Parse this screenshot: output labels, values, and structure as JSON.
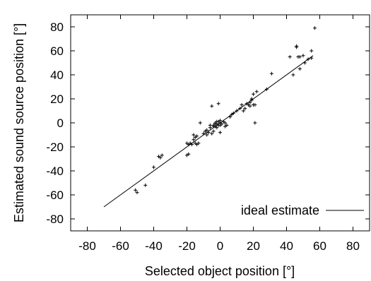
{
  "chart_data": {
    "type": "scatter",
    "xlabel": "Selected object position [°]",
    "ylabel": "Estimated sound source position [°]",
    "xlim": [
      -90,
      90
    ],
    "ylim": [
      -90,
      90
    ],
    "xticks": [
      -80,
      -60,
      -40,
      -20,
      0,
      20,
      40,
      60,
      80
    ],
    "yticks": [
      -80,
      -60,
      -40,
      -20,
      0,
      20,
      40,
      60,
      80
    ],
    "grid": false,
    "legend_position": "bottom-right",
    "marker": "+",
    "series": [
      {
        "name": "",
        "kind": "points",
        "points": [
          [
            -51,
            -56
          ],
          [
            -50,
            -58
          ],
          [
            -45,
            -52
          ],
          [
            -40,
            -37
          ],
          [
            -37,
            -28
          ],
          [
            -36,
            -29
          ],
          [
            -35,
            -27
          ],
          [
            -20,
            -17
          ],
          [
            -20,
            -27
          ],
          [
            -19,
            -26
          ],
          [
            -19,
            -18
          ],
          [
            -18,
            -17
          ],
          [
            -17,
            -18
          ],
          [
            -16,
            -10
          ],
          [
            -16,
            -14
          ],
          [
            -15,
            -12
          ],
          [
            -15,
            -17
          ],
          [
            -14,
            -18
          ],
          [
            -14,
            -11
          ],
          [
            -13,
            -17
          ],
          [
            -12,
            0
          ],
          [
            -10,
            -9
          ],
          [
            -9,
            -7
          ],
          [
            -8,
            -6
          ],
          [
            -8,
            -10
          ],
          [
            -7,
            -8
          ],
          [
            -6,
            -4
          ],
          [
            -6,
            -2
          ],
          [
            -5,
            14
          ],
          [
            -5,
            -9
          ],
          [
            -4,
            -7
          ],
          [
            -4,
            -3
          ],
          [
            -4,
            -2
          ],
          [
            -3,
            0
          ],
          [
            -3,
            -1
          ],
          [
            -3,
            -3
          ],
          [
            -2,
            -1
          ],
          [
            -2,
            1
          ],
          [
            -2,
            -4
          ],
          [
            -1,
            1
          ],
          [
            -1,
            16
          ],
          [
            -1,
            -2
          ],
          [
            0,
            2
          ],
          [
            0,
            0
          ],
          [
            0,
            -2
          ],
          [
            0,
            -8
          ],
          [
            1,
            -1
          ],
          [
            2,
            1
          ],
          [
            3,
            0
          ],
          [
            3,
            -3
          ],
          [
            4,
            -2
          ],
          [
            6,
            5
          ],
          [
            7,
            7
          ],
          [
            8,
            8
          ],
          [
            10,
            10
          ],
          [
            12,
            12
          ],
          [
            13,
            15
          ],
          [
            14,
            10
          ],
          [
            15,
            12
          ],
          [
            16,
            16
          ],
          [
            17,
            15
          ],
          [
            18,
            14
          ],
          [
            18,
            17
          ],
          [
            19,
            19
          ],
          [
            19,
            20
          ],
          [
            20,
            15
          ],
          [
            20,
            24
          ],
          [
            21,
            15
          ],
          [
            21,
            0
          ],
          [
            22,
            26
          ],
          [
            28,
            28
          ],
          [
            31,
            41
          ],
          [
            42,
            55
          ],
          [
            44,
            40
          ],
          [
            46,
            64
          ],
          [
            46,
            63
          ],
          [
            47,
            55
          ],
          [
            48,
            55
          ],
          [
            48,
            45
          ],
          [
            50,
            56
          ],
          [
            51,
            50
          ],
          [
            53,
            53
          ],
          [
            55,
            60
          ],
          [
            55,
            54
          ],
          [
            57,
            79
          ]
        ]
      },
      {
        "name": "ideal estimate",
        "kind": "line",
        "points": [
          [
            -70,
            -70
          ],
          [
            56,
            56
          ]
        ]
      }
    ]
  }
}
